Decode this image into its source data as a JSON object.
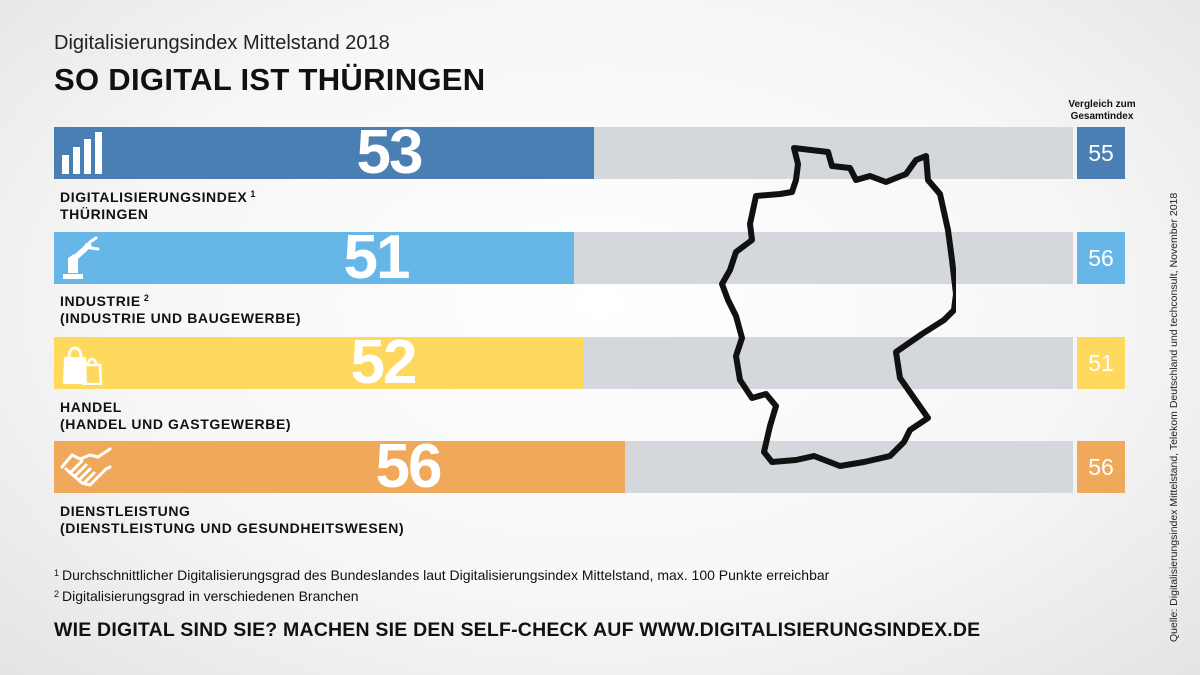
{
  "header": {
    "subtitle": "Digitalisierungsindex Mittelstand 2018",
    "title": "SO DIGITAL IST THÜRINGEN",
    "compare_heading_line1": "Vergleich zum",
    "compare_heading_line2": "Gesamtindex"
  },
  "chart_data": {
    "type": "bar",
    "orientation": "horizontal",
    "xlim": [
      0,
      100
    ],
    "categories": [
      {
        "label1": "DIGITALISIERUNGSINDEX",
        "sup": "1",
        "label2": "THÜRINGEN",
        "value": 53,
        "comparison": 55,
        "color": "#4a7fb3",
        "icon": "bar-chart-icon"
      },
      {
        "label1": "INDUSTRIE",
        "sup": "2",
        "label2": "(INDUSTRIE UND BAUGEWERBE)",
        "value": 51,
        "comparison": 56,
        "color": "#66b7e8",
        "icon": "robot-arm-icon"
      },
      {
        "label1": "HANDEL",
        "sup": "",
        "label2": "(HANDEL UND GASTGEWERBE)",
        "value": 52,
        "comparison": 51,
        "color": "#ffd85e",
        "icon": "shopping-bags-icon"
      },
      {
        "label1": "DIENSTLEISTUNG",
        "sup": "",
        "label2": "(DIENSTLEISTUNG UND GESUNDHEITSWESEN)",
        "value": 56,
        "comparison": 56,
        "color": "#f0a95a",
        "icon": "handshake-icon"
      }
    ],
    "track_color": "#d4d8dc"
  },
  "footnotes": [
    {
      "marker": "1",
      "text": "Durchschnittlicher Digitalisierungsgrad des Bundeslandes laut Digitalisierungsindex Mittelstand, max. 100 Punkte erreichbar"
    },
    {
      "marker": "2",
      "text": "Digitalisierungsgrad in verschiedenen Branchen"
    }
  ],
  "cta": "WIE DIGITAL SIND SIE? MACHEN SIE DEN SELF-CHECK AUF WWW.DIGITALISIERUNGSINDEX.DE",
  "source": "Quelle: Digitalisierungsindex Mittelstand, Telekom Deutschland und techconsult, November 2018",
  "map_icon": "germany-map-outline-icon"
}
